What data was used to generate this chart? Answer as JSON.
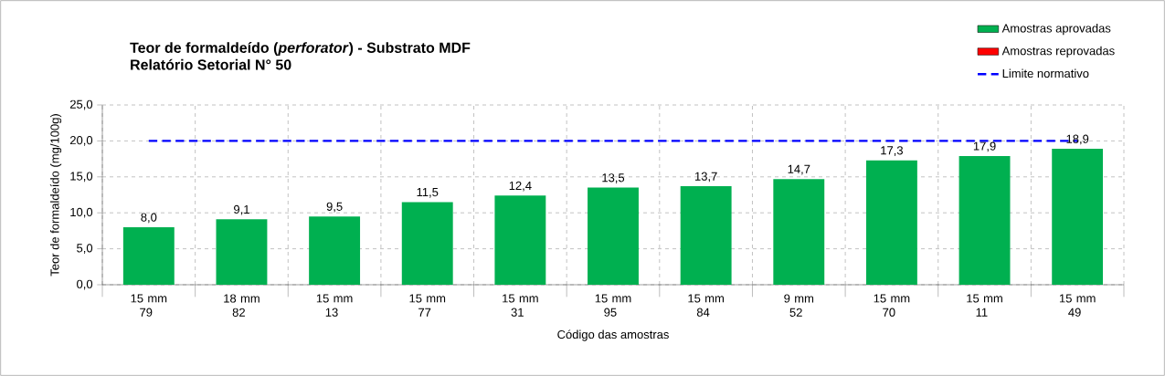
{
  "chart_data": {
    "type": "bar",
    "title": "Teor de formaldeído (*perforator*) - Substrato MDF",
    "subtitle": "Relatório Setorial N° 50",
    "xlabel": "Código das amostras",
    "ylabel": "Teor de formaldeído (mg/100g)",
    "categories": [
      "15 mm 79",
      "18 mm 82",
      "15 mm 13",
      "15 mm 77",
      "15 mm 31",
      "15 mm 95",
      "15 mm 84",
      "9 mm 52",
      "15 mm 70",
      "15 mm 11",
      "15 mm 49"
    ],
    "series": [
      {
        "name": "Amostras aprovadas",
        "color": "#00b050",
        "values": [
          8.0,
          9.1,
          9.5,
          11.5,
          12.4,
          13.5,
          13.7,
          14.7,
          17.3,
          17.9,
          18.9
        ],
        "value_labels": [
          "8,0",
          "9,1",
          "9,5",
          "11,5",
          "12,4",
          "13,5",
          "13,7",
          "14,7",
          "17,3",
          "17,9",
          "18,9"
        ]
      },
      {
        "name": "Amostras reprovadas",
        "color": "#ff0000",
        "values": [
          null,
          null,
          null,
          null,
          null,
          null,
          null,
          null,
          null,
          null,
          null
        ]
      }
    ],
    "ref_lines": [
      {
        "axis": "y",
        "value": 20,
        "label": "Limite normativo",
        "color": "#0000ff",
        "line_style": "dashed"
      }
    ],
    "ylim": [
      0,
      25
    ],
    "yticks": [
      {
        "value": 0,
        "label": "0,0"
      },
      {
        "value": 5,
        "label": "5,0"
      },
      {
        "value": 10,
        "label": "10,0"
      },
      {
        "value": 15,
        "label": "15,0"
      },
      {
        "value": 20,
        "label": "20,0"
      },
      {
        "value": 25,
        "label": "25,0"
      }
    ],
    "grid": true,
    "legend": "top right"
  }
}
